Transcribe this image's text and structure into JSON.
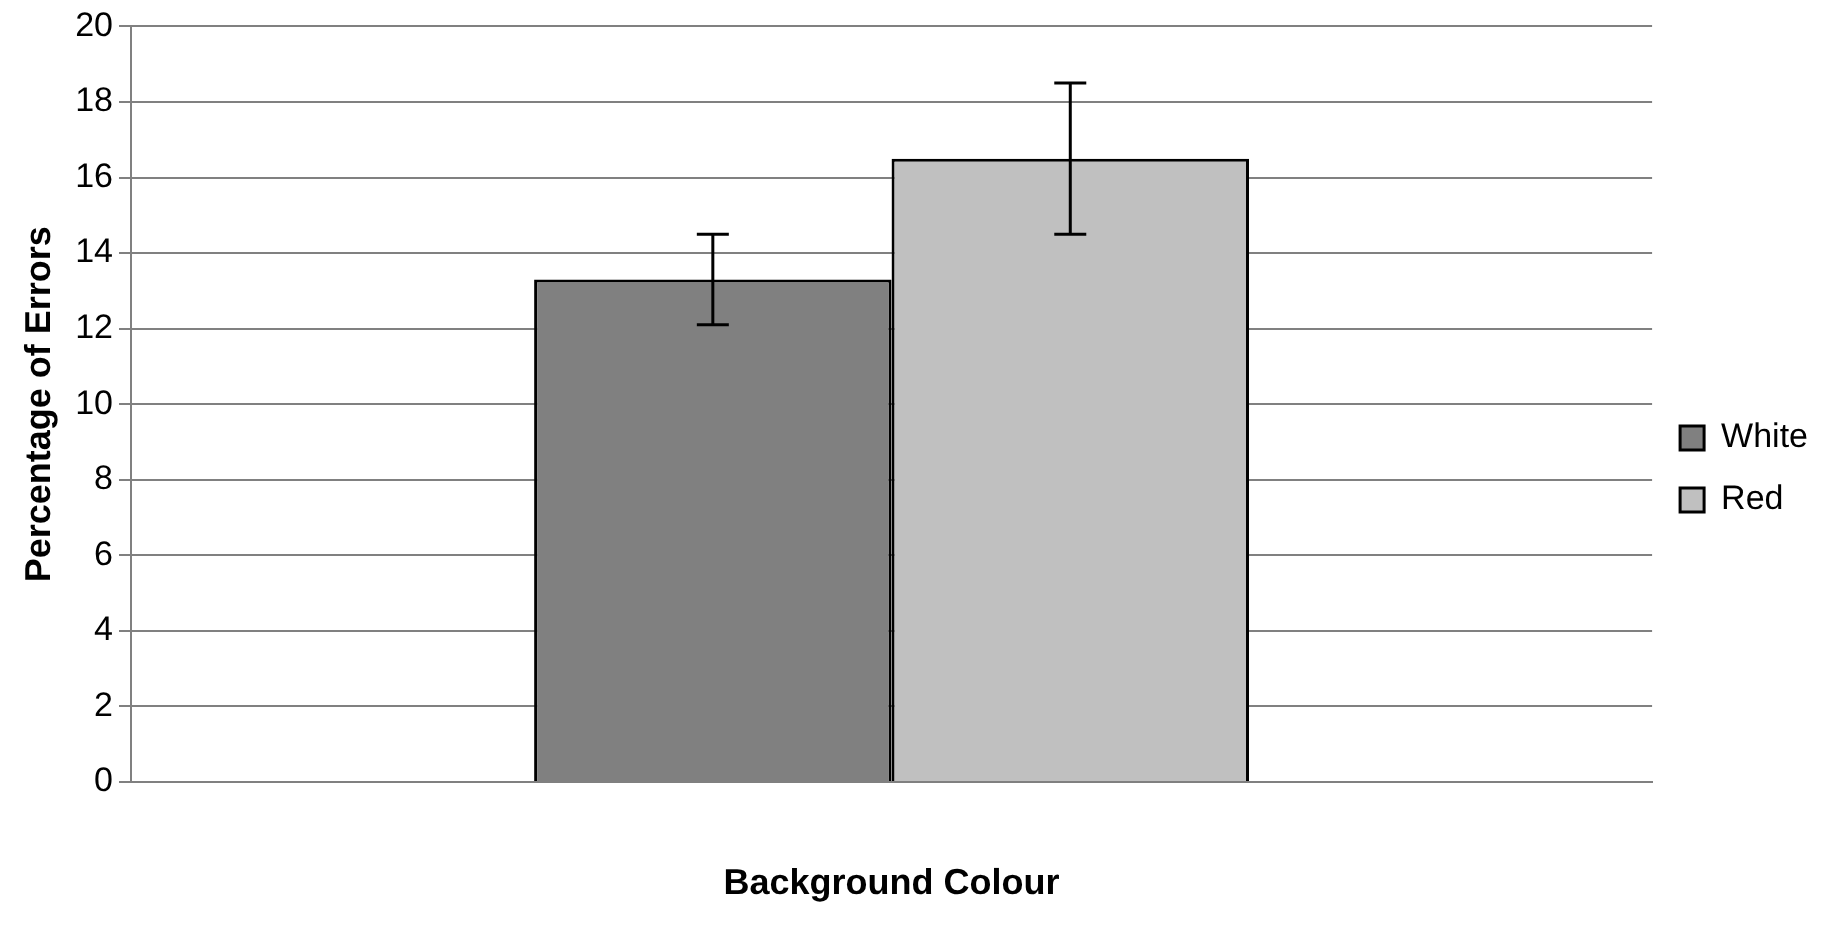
{
  "chart_data": {
    "type": "bar",
    "xlabel": "Background Colour",
    "ylabel": "Percentage of Errors",
    "categories": [
      null
    ],
    "series": [
      {
        "name": "White",
        "color": "#808080",
        "values": [
          13.3
        ],
        "errors": [
          [
            12.1,
            14.5
          ]
        ]
      },
      {
        "name": "Red",
        "color": "#c0c0c0",
        "values": [
          16.5
        ],
        "errors": [
          [
            14.5,
            18.5
          ]
        ]
      }
    ],
    "ylim": [
      0,
      20
    ],
    "yticks": [
      0,
      2,
      4,
      6,
      8,
      10,
      12,
      14,
      16,
      18,
      20
    ],
    "grid": "y",
    "legend": "right"
  }
}
